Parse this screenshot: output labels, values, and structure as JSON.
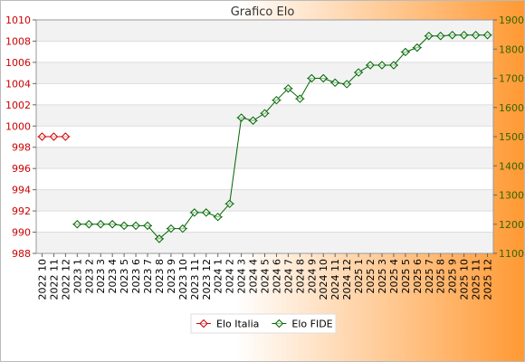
{
  "chart_data": {
    "type": "line",
    "title": "Grafico Elo",
    "categories": [
      "2022 10",
      "2022 11",
      "2022 12",
      "2023 1",
      "2023 2",
      "2023 3",
      "2023 4",
      "2023 5",
      "2023 6",
      "2023 7",
      "2023 8",
      "2023 9",
      "2023 10",
      "2023 11",
      "2023 12",
      "2024 1",
      "2024 2",
      "2024 3",
      "2024 4",
      "2024 5",
      "2024 6",
      "2024 7",
      "2024 8",
      "2024 9",
      "2024 10",
      "2024 11",
      "2024 12",
      "2025 1",
      "2025 2",
      "2025 3",
      "2025 4",
      "2025 5",
      "2025 6",
      "2025 7",
      "2025 8",
      "2025 9",
      "2025 10",
      "2025 11",
      "2025 12"
    ],
    "y_left": {
      "ylim": [
        988,
        1010
      ],
      "ticks": [
        988,
        990,
        992,
        994,
        996,
        998,
        1000,
        1002,
        1004,
        1006,
        1008,
        1010
      ],
      "color": "#cc0000"
    },
    "y_right": {
      "ylim": [
        1100,
        1900
      ],
      "ticks": [
        1100,
        1200,
        1300,
        1400,
        1500,
        1600,
        1700,
        1800,
        1900
      ],
      "color": "#336600"
    },
    "series": [
      {
        "name": "Elo Italia",
        "axis": "left",
        "color": "#cc0000",
        "values": [
          999,
          999,
          999,
          null,
          null,
          null,
          null,
          null,
          null,
          null,
          null,
          null,
          null,
          null,
          null,
          null,
          null,
          null,
          null,
          null,
          null,
          null,
          null,
          null,
          null,
          null,
          null,
          null,
          null,
          null,
          null,
          null,
          null,
          null,
          null,
          null,
          null,
          null,
          null
        ]
      },
      {
        "name": "Elo FIDE",
        "axis": "right",
        "color": "#006600",
        "values": [
          null,
          null,
          null,
          1200,
          1200,
          1200,
          1200,
          1195,
          1195,
          1195,
          1150,
          1185,
          1185,
          1240,
          1240,
          1225,
          1270,
          1565,
          1555,
          1580,
          1625,
          1665,
          1630,
          1700,
          1700,
          1685,
          1680,
          1720,
          1745,
          1745,
          1745,
          1790,
          1805,
          1845,
          1845,
          1848,
          1848,
          1848,
          1848
        ]
      }
    ],
    "grid": true,
    "legend_position": "bottom"
  }
}
